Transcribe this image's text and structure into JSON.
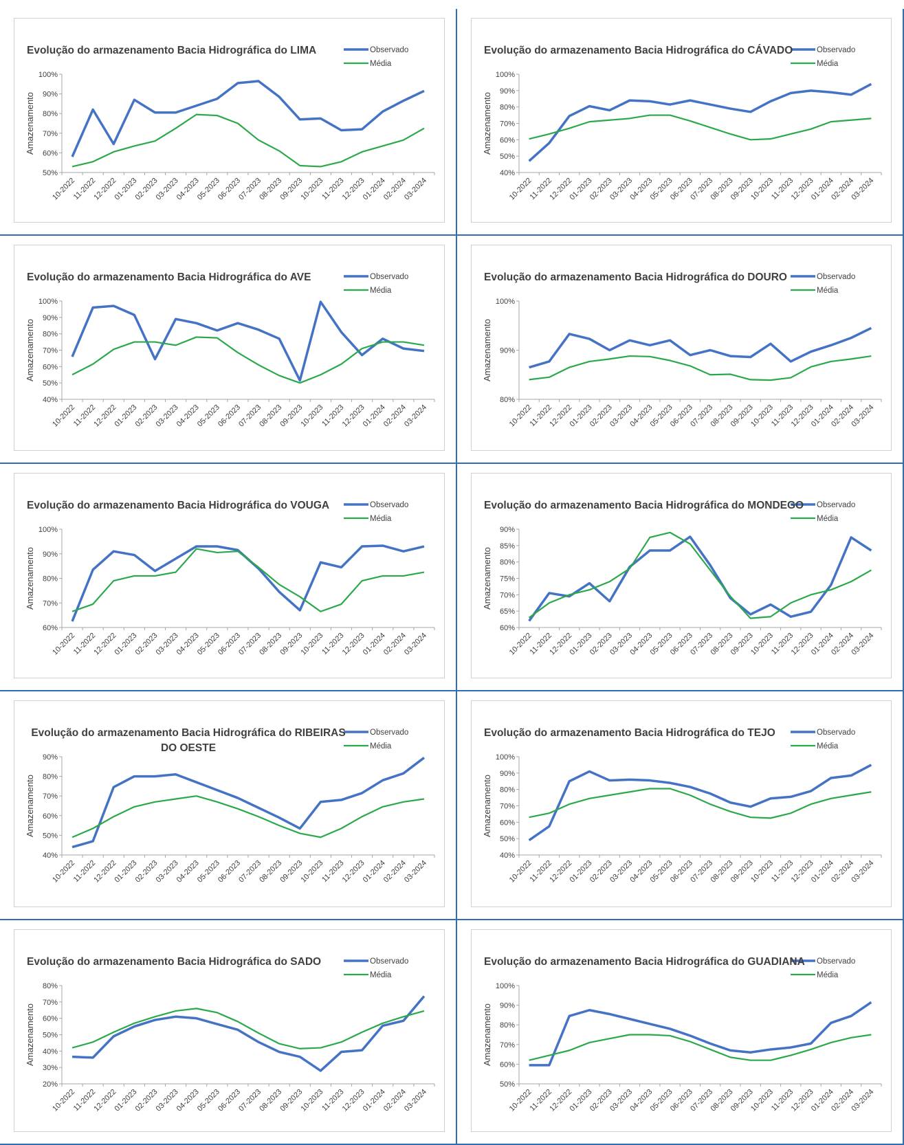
{
  "chart_data": [
    {
      "type": "line",
      "title": "Evolução do armazenamento Bacia Hidrográfica do LIMA",
      "ylabel": "Amazenamento",
      "categories": [
        "10-2022",
        "11-2022",
        "12-2022",
        "01-2023",
        "02-2023",
        "03-2023",
        "04-2023",
        "05-2023",
        "06-2023",
        "07-2023",
        "08-2023",
        "09-2023",
        "10-2023",
        "11-2023",
        "12-2023",
        "01-2024",
        "02-2024",
        "03-2024"
      ],
      "series": [
        {
          "name": "Observado",
          "color": "#4472c4",
          "values": [
            58,
            82,
            64.5,
            87,
            80.5,
            80.5,
            84,
            87.5,
            95.5,
            96.5,
            88.5,
            77,
            77.5,
            71.5,
            72,
            81,
            86.5,
            91.5
          ]
        },
        {
          "name": "Média",
          "color": "#2aa84a",
          "values": [
            53,
            55.5,
            60.5,
            63.5,
            66,
            72.5,
            79.5,
            79,
            75,
            66.5,
            61,
            53.5,
            53,
            55.5,
            60.5,
            63.5,
            66.5,
            72.5
          ]
        }
      ],
      "ylim": [
        50,
        100
      ],
      "yticks": [
        {
          "value": 50,
          "label": "50%"
        },
        {
          "value": 60,
          "label": "60%"
        },
        {
          "value": 70,
          "label": "70%"
        },
        {
          "value": 80,
          "label": "80%"
        },
        {
          "value": 90,
          "label": "90%"
        },
        {
          "value": 100,
          "label": "100%"
        }
      ]
    },
    {
      "type": "line",
      "title": "Evolução do armazenamento Bacia Hidrográfica do CÁVADO",
      "ylabel": "Amazenamento",
      "categories": [
        "10-2022",
        "11-2022",
        "12-2022",
        "01-2023",
        "02-2023",
        "03-2023",
        "04-2023",
        "05-2023",
        "06-2023",
        "07-2023",
        "08-2023",
        "09-2023",
        "10-2023",
        "11-2023",
        "12-2023",
        "01-2024",
        "02-2024",
        "03-2024"
      ],
      "series": [
        {
          "name": "Observado",
          "color": "#4472c4",
          "values": [
            47,
            58,
            74.5,
            80.5,
            78,
            84,
            83.5,
            81.5,
            84,
            81.5,
            79,
            77,
            83.5,
            88.5,
            90,
            89,
            87.5,
            94
          ]
        },
        {
          "name": "Média",
          "color": "#2aa84a",
          "values": [
            60.5,
            63.5,
            67,
            71,
            72,
            73,
            75,
            75,
            71.5,
            67.5,
            63.5,
            60,
            60.5,
            63.5,
            66.5,
            71,
            72,
            73
          ]
        }
      ],
      "ylim": [
        40,
        100
      ],
      "yticks": [
        {
          "value": 40,
          "label": "40%"
        },
        {
          "value": 50,
          "label": "50%"
        },
        {
          "value": 60,
          "label": "60%"
        },
        {
          "value": 70,
          "label": "70%"
        },
        {
          "value": 80,
          "label": "80%"
        },
        {
          "value": 90,
          "label": "90%"
        },
        {
          "value": 100,
          "label": "100%"
        }
      ]
    },
    {
      "type": "line",
      "title": "Evolução do armazenamento Bacia Hidrográfica do AVE",
      "ylabel": "Amazenamento",
      "categories": [
        "10-2022",
        "11-2022",
        "12-2022",
        "01-2023",
        "02-2023",
        "03-2023",
        "04-2023",
        "05-2023",
        "06-2023",
        "07-2023",
        "08-2023",
        "09-2023",
        "10-2023",
        "11-2023",
        "12-2023",
        "01-2024",
        "02-2024",
        "03-2024"
      ],
      "series": [
        {
          "name": "Observado",
          "color": "#4472c4",
          "values": [
            66,
            96,
            97,
            91.5,
            64.5,
            89,
            86.5,
            82,
            86.5,
            82.5,
            77,
            51.5,
            99.5,
            81,
            67,
            77,
            71,
            69.5
          ]
        },
        {
          "name": "Média",
          "color": "#2aa84a",
          "values": [
            55,
            61.5,
            70.5,
            75,
            75,
            73,
            78,
            77.5,
            68.5,
            61,
            54.5,
            50,
            55,
            61.5,
            71,
            75,
            75,
            73
          ]
        }
      ],
      "ylim": [
        40,
        100
      ],
      "yticks": [
        {
          "value": 40,
          "label": "40%"
        },
        {
          "value": 50,
          "label": "50%"
        },
        {
          "value": 60,
          "label": "60%"
        },
        {
          "value": 70,
          "label": "70%"
        },
        {
          "value": 80,
          "label": "80%"
        },
        {
          "value": 90,
          "label": "90%"
        },
        {
          "value": 100,
          "label": "100%"
        }
      ]
    },
    {
      "type": "line",
      "title": "Evolução do armazenamento Bacia Hidrográfica do DOURO",
      "ylabel": "Amazenamento",
      "categories": [
        "10-2022",
        "11-2022",
        "12-2022",
        "01-2023",
        "02-2023",
        "03-2023",
        "04-2023",
        "05-2023",
        "06-2023",
        "07-2023",
        "08-2023",
        "09-2023",
        "10-2023",
        "11-2023",
        "12-2023",
        "01-2024",
        "02-2024",
        "03-2024"
      ],
      "series": [
        {
          "name": "Observado",
          "color": "#4472c4",
          "values": [
            86.5,
            87.7,
            93.3,
            92.3,
            90,
            92,
            91,
            92,
            89,
            90,
            88.8,
            88.6,
            91.3,
            87.7,
            89.7,
            91,
            92.5,
            94.5
          ]
        },
        {
          "name": "Média",
          "color": "#2aa84a",
          "values": [
            84,
            84.5,
            86.5,
            87.7,
            88.2,
            88.8,
            88.7,
            87.9,
            86.8,
            85,
            85.1,
            84,
            83.9,
            84.4,
            86.6,
            87.7,
            88.2,
            88.8
          ]
        }
      ],
      "ylim": [
        80,
        100
      ],
      "yticks": [
        {
          "value": 80,
          "label": "80%"
        },
        {
          "value": 90,
          "label": "90%"
        },
        {
          "value": 100,
          "label": "100%"
        }
      ]
    },
    {
      "type": "line",
      "title": "Evolução do armazenamento Bacia Hidrográfica do VOUGA",
      "ylabel": "Amazenamento",
      "categories": [
        "10-2022",
        "11-2022",
        "12-2022",
        "01-2023",
        "02-2023",
        "03-2023",
        "04-2023",
        "05-2023",
        "06-2023",
        "07-2023",
        "08-2023",
        "09-2023",
        "10-2023",
        "11-2023",
        "12-2023",
        "01-2024",
        "02-2024",
        "03-2024"
      ],
      "series": [
        {
          "name": "Observado",
          "color": "#4472c4",
          "values": [
            62.5,
            83.5,
            91,
            89.5,
            83,
            88,
            93,
            93,
            91.5,
            84,
            74.5,
            67,
            86.5,
            84.5,
            93,
            93.3,
            91,
            93
          ]
        },
        {
          "name": "Média",
          "color": "#2aa84a",
          "values": [
            66.5,
            69.5,
            79,
            81,
            81,
            82.5,
            92,
            90.5,
            91,
            84.5,
            77.5,
            72.5,
            66.5,
            69.5,
            79,
            81,
            81,
            82.5
          ]
        }
      ],
      "ylim": [
        60,
        100
      ],
      "yticks": [
        {
          "value": 60,
          "label": "60%"
        },
        {
          "value": 70,
          "label": "70%"
        },
        {
          "value": 80,
          "label": "80%"
        },
        {
          "value": 90,
          "label": "90%"
        },
        {
          "value": 100,
          "label": "100%"
        }
      ]
    },
    {
      "type": "line",
      "title": "Evolução do armazenamento Bacia Hidrográfica do MONDEGO",
      "ylabel": "Amazenamento",
      "categories": [
        "10-2022",
        "11-2022",
        "12-2022",
        "01-2023",
        "02-2023",
        "03-2023",
        "04-2023",
        "05-2023",
        "06-2023",
        "07-2023",
        "08-2023",
        "09-2023",
        "10-2023",
        "11-2023",
        "12-2023",
        "01-2024",
        "02-2024",
        "03-2024"
      ],
      "series": [
        {
          "name": "Observado",
          "color": "#4472c4",
          "values": [
            62,
            70.5,
            69.5,
            73.5,
            68,
            78.5,
            83.5,
            83.5,
            87.7,
            79,
            69,
            64,
            67,
            63.3,
            64.8,
            73,
            87.5,
            83.5
          ]
        },
        {
          "name": "Média",
          "color": "#2aa84a",
          "values": [
            63,
            67.5,
            70,
            71.5,
            74,
            78,
            87.5,
            89,
            85.5,
            77.5,
            69.5,
            62.8,
            63.3,
            67.5,
            70,
            71.5,
            74,
            77.5
          ]
        }
      ],
      "ylim": [
        60,
        90
      ],
      "yticks": [
        {
          "value": 60,
          "label": "60%"
        },
        {
          "value": 65,
          "label": "65%"
        },
        {
          "value": 70,
          "label": "70%"
        },
        {
          "value": 75,
          "label": "75%"
        },
        {
          "value": 80,
          "label": "80%"
        },
        {
          "value": 85,
          "label": "85%"
        },
        {
          "value": 90,
          "label": "90%"
        }
      ]
    },
    {
      "type": "line",
      "title": "Evolução do armazenamento Bacia Hidrográfica do RIBEIRAS DO OESTE",
      "ylabel": "Amazenamento",
      "categories": [
        "10-2022",
        "11-2022",
        "12-2022",
        "01-2023",
        "02-2023",
        "03-2023",
        "04-2023",
        "05-2023",
        "06-2023",
        "07-2023",
        "08-2023",
        "09-2023",
        "10-2023",
        "11-2023",
        "12-2023",
        "01-2024",
        "02-2024",
        "03-2024"
      ],
      "series": [
        {
          "name": "Observado",
          "color": "#4472c4",
          "values": [
            44,
            47,
            74.5,
            80,
            80,
            81,
            77,
            73,
            69,
            64,
            59,
            53.5,
            67,
            68,
            71.5,
            78,
            81.5,
            89.5
          ]
        },
        {
          "name": "Média",
          "color": "#2aa84a",
          "values": [
            49,
            53.5,
            59.5,
            64.5,
            67,
            68.5,
            70,
            67,
            63.5,
            59.5,
            55,
            51,
            49,
            53.5,
            59.5,
            64.5,
            67,
            68.5
          ]
        }
      ],
      "ylim": [
        40,
        90
      ],
      "yticks": [
        {
          "value": 40,
          "label": "40%"
        },
        {
          "value": 50,
          "label": "50%"
        },
        {
          "value": 60,
          "label": "60%"
        },
        {
          "value": 70,
          "label": "70%"
        },
        {
          "value": 80,
          "label": "80%"
        },
        {
          "value": 90,
          "label": "90%"
        }
      ]
    },
    {
      "type": "line",
      "title": "Evolução do armazenamento Bacia Hidrográfica do TEJO",
      "ylabel": "Amazenamento",
      "categories": [
        "10-2022",
        "11-2022",
        "12-2022",
        "01-2023",
        "02-2023",
        "03-2023",
        "04-2023",
        "05-2023",
        "06-2023",
        "07-2023",
        "08-2023",
        "09-2023",
        "10-2023",
        "11-2023",
        "12-2023",
        "01-2024",
        "02-2024",
        "03-2024"
      ],
      "series": [
        {
          "name": "Observado",
          "color": "#4472c4",
          "values": [
            49,
            57.5,
            85,
            91,
            85.5,
            86,
            85.5,
            84,
            81.5,
            77.5,
            72,
            69.5,
            74.5,
            75.5,
            79,
            87,
            88.5,
            95
          ]
        },
        {
          "name": "Média",
          "color": "#2aa84a",
          "values": [
            63,
            65.5,
            71,
            74.5,
            76.5,
            78.5,
            80.5,
            80.5,
            76.5,
            71,
            66.5,
            63,
            62.5,
            65.5,
            71,
            74.5,
            76.5,
            78.5
          ]
        }
      ],
      "ylim": [
        40,
        100
      ],
      "yticks": [
        {
          "value": 40,
          "label": "40%"
        },
        {
          "value": 50,
          "label": "50%"
        },
        {
          "value": 60,
          "label": "60%"
        },
        {
          "value": 70,
          "label": "70%"
        },
        {
          "value": 80,
          "label": "80%"
        },
        {
          "value": 90,
          "label": "90%"
        },
        {
          "value": 100,
          "label": "100%"
        }
      ]
    },
    {
      "type": "line",
      "title": "Evolução do armazenamento Bacia Hidrográfica do SADO",
      "ylabel": "Amazenamento",
      "categories": [
        "10-2022",
        "11-2022",
        "12-2022",
        "01-2023",
        "02-2023",
        "03-2023",
        "04-2023",
        "05-2023",
        "06-2023",
        "07-2023",
        "08-2023",
        "09-2023",
        "10-2023",
        "11-2023",
        "12-2023",
        "01-2024",
        "02-2024",
        "03-2024"
      ],
      "series": [
        {
          "name": "Observado",
          "color": "#4472c4",
          "values": [
            36.5,
            36,
            49,
            55,
            59,
            61,
            60,
            56.5,
            53,
            45.5,
            39.5,
            36.5,
            28,
            39.5,
            40.5,
            55.5,
            58.5,
            73.5
          ]
        },
        {
          "name": "Média",
          "color": "#2aa84a",
          "values": [
            42,
            45.5,
            51.5,
            57,
            61,
            64.5,
            66,
            63.5,
            58,
            51,
            44.5,
            41.5,
            42,
            45.5,
            51.5,
            57,
            61,
            64.5
          ]
        }
      ],
      "ylim": [
        20,
        80
      ],
      "yticks": [
        {
          "value": 20,
          "label": "20%"
        },
        {
          "value": 30,
          "label": "30%"
        },
        {
          "value": 40,
          "label": "40%"
        },
        {
          "value": 50,
          "label": "50%"
        },
        {
          "value": 60,
          "label": "60%"
        },
        {
          "value": 70,
          "label": "70%"
        },
        {
          "value": 80,
          "label": "80%"
        }
      ]
    },
    {
      "type": "line",
      "title": "Evolução do armazenamento Bacia Hidrográfica do GUADIANA",
      "ylabel": "Amazenamento",
      "categories": [
        "10-2022",
        "11-2022",
        "12-2022",
        "01-2023",
        "02-2023",
        "03-2023",
        "04-2023",
        "05-2023",
        "06-2023",
        "07-2023",
        "08-2023",
        "09-2023",
        "10-2023",
        "11-2023",
        "12-2023",
        "01-2024",
        "02-2024",
        "03-2024"
      ],
      "series": [
        {
          "name": "Observado",
          "color": "#4472c4",
          "values": [
            59.5,
            59.5,
            84.5,
            87.5,
            85.5,
            83,
            80.5,
            78,
            74.5,
            70.5,
            67,
            66,
            67.5,
            68.5,
            70.5,
            81,
            84.5,
            91.5
          ]
        },
        {
          "name": "Média",
          "color": "#2aa84a",
          "values": [
            62,
            64.5,
            67,
            71,
            73,
            75,
            75,
            74.5,
            71.5,
            67.5,
            63.5,
            62,
            62,
            64.5,
            67.5,
            71,
            73.5,
            75
          ]
        }
      ],
      "ylim": [
        50,
        100
      ],
      "yticks": [
        {
          "value": 50,
          "label": "50%"
        },
        {
          "value": 60,
          "label": "60%"
        },
        {
          "value": 70,
          "label": "70%"
        },
        {
          "value": 80,
          "label": "80%"
        },
        {
          "value": 90,
          "label": "90%"
        },
        {
          "value": 100,
          "label": "100%"
        }
      ]
    }
  ]
}
